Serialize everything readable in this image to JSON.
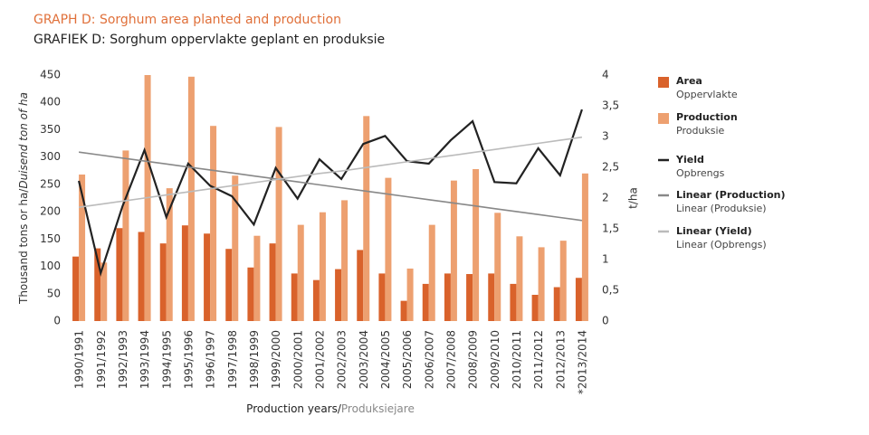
{
  "chart_data": {
    "type": "bar",
    "title": "GRAPH D: Sorghum area planted and production",
    "subtitle": "GRAFIEK D: Sorghum oppervlakte geplant en produksie",
    "y_label": [
      "Thousand tons or ha/",
      "Duisend ton of ha"
    ],
    "y2_label": "t/ha",
    "x_label": [
      "Production years/",
      "Produksiejare"
    ],
    "categories": [
      "1990/1991",
      "1991/1992",
      "1992/1993",
      "1993/1994",
      "1994/1995",
      "1995/1996",
      "1996/1997",
      "1997/1998",
      "1998/1999",
      "1999/2000",
      "2000/2001",
      "2001/2002",
      "2002/2003",
      "2003/2004",
      "2004/2005",
      "2005/2006",
      "2006/2007",
      "2007/2008",
      "2008/2009",
      "2009/2010",
      "2010/2011",
      "2011/2012",
      "2012/2013",
      "*2013/2014"
    ],
    "series": [
      {
        "name": "Area",
        "subname": "Oppervlakte",
        "type": "bar",
        "color": "#d9622b",
        "values": [
          118,
          133,
          170,
          163,
          142,
          175,
          160,
          132,
          98,
          142,
          87,
          75,
          95,
          130,
          87,
          37,
          68,
          87,
          86,
          87,
          68,
          48,
          62,
          79
        ]
      },
      {
        "name": "Production",
        "subname": "Produksie",
        "type": "bar",
        "color": "#eda070",
        "values": [
          268,
          107,
          312,
          450,
          243,
          447,
          357,
          266,
          156,
          355,
          176,
          199,
          221,
          375,
          262,
          96,
          176,
          257,
          278,
          198,
          155,
          135,
          147,
          270
        ]
      },
      {
        "name": "Yield",
        "subname": "Opbrengs",
        "type": "line",
        "axis": "y2",
        "color": "#222222",
        "values": [
          2.28,
          0.78,
          1.87,
          2.78,
          1.69,
          2.56,
          2.2,
          2.03,
          1.57,
          2.49,
          1.99,
          2.63,
          2.31,
          2.88,
          3.01,
          2.6,
          2.56,
          2.94,
          3.25,
          2.26,
          2.24,
          2.81,
          2.37,
          3.44
        ]
      },
      {
        "name": "Linear (Production)",
        "subname": "Linear (Produksie)",
        "type": "line",
        "color": "#888888",
        "values": [
          309,
          303.6,
          298.1,
          292.7,
          287.3,
          281.8,
          276.4,
          271.0,
          265.5,
          260.1,
          254.7,
          249.2,
          243.8,
          238.3,
          232.9,
          227.5,
          222.0,
          216.6,
          211.2,
          205.7,
          200.3,
          194.9,
          189.4,
          184
        ]
      },
      {
        "name": "Linear (Yield)",
        "subname": "Linear (Opbrengs)",
        "type": "line",
        "axis": "y2",
        "color": "#bbbbbb",
        "values": [
          1.85,
          1.9,
          1.95,
          2.0,
          2.05,
          2.1,
          2.15,
          2.2,
          2.25,
          2.3,
          2.35,
          2.4,
          2.44,
          2.49,
          2.54,
          2.59,
          2.64,
          2.69,
          2.74,
          2.79,
          2.84,
          2.89,
          2.94,
          2.99
        ]
      }
    ],
    "ylim": [
      0,
      450
    ],
    "yticks": [
      0,
      50,
      100,
      150,
      200,
      250,
      300,
      350,
      400,
      450
    ],
    "y2lim": [
      0,
      4
    ],
    "y2ticks": [
      0,
      {
        "value": 0.5,
        "label": "0,5"
      },
      1,
      {
        "value": 1.5,
        "label": "1,5"
      },
      2,
      {
        "value": 2.5,
        "label": "2,5"
      },
      3,
      {
        "value": 3.5,
        "label": "3,5"
      },
      4
    ],
    "grid": false
  }
}
